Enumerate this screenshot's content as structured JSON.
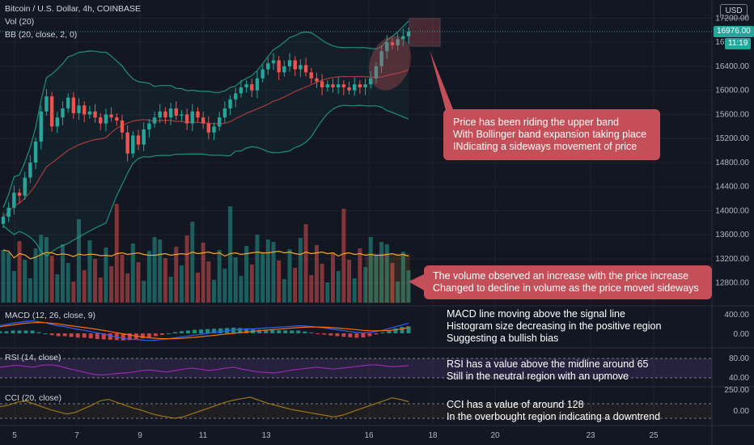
{
  "header": {
    "title": "Bitcoin / U.S. Dollar, 4h, COINBASE",
    "vol_label": "Vol (20)",
    "bb_label": "BB (20, close, 2, 0)",
    "currency": "USD",
    "last_price": "16976.00",
    "countdown": "11:19"
  },
  "panes": {
    "macd_label": "MACD (12, 26, close, 9)",
    "rsi_label": "RSI (14, close)",
    "cci_label": "CCI (20, close)"
  },
  "annotations": {
    "price_note": [
      "Price has been riding the upper band",
      "With Bollinger band expansion taking place",
      "INdicating a sideways movement of price"
    ],
    "volume_note": [
      "The volume observed an increase with the price increase",
      "Changed to decline in volume as the price moved sideways"
    ],
    "macd_note": [
      "MACD line moving above the signal line",
      "Histogram size decreasing in the positive region",
      "Suggesting a bullish bias"
    ],
    "rsi_note": [
      "RSI has a value above the midline around 65",
      "Still in the neutral region with an upmove"
    ],
    "cci_note": [
      "CCI has a value of around 128",
      "In the overbought region indicating a downtrend"
    ]
  },
  "colors": {
    "background": "#131722",
    "up": "#26a69a",
    "down": "#ef5350",
    "bb_band": "#1f8f7a",
    "bb_basis": "#a83a3a",
    "volume_ma": "#f5a623",
    "macd_line": "#2962ff",
    "signal_line": "#ff6d00",
    "rsi_line": "#9c27b0",
    "cci_line": "#9a7416",
    "annotation": "#c44f58",
    "volume_box": "#f5a623"
  },
  "chart_data": {
    "type": "candlestick",
    "symbol": "Bitcoin / U.S. Dollar",
    "interval": "4h",
    "exchange": "COINBASE",
    "x_tick_labels": [
      "5",
      "7",
      "9",
      "11",
      "13",
      "16",
      "18",
      "20",
      "23",
      "25"
    ],
    "price_axis": {
      "ticks": [
        12800,
        13200,
        13600,
        14000,
        14400,
        14800,
        15200,
        15600,
        16000,
        16400,
        16800,
        17200
      ],
      "range": [
        12500,
        17300
      ]
    },
    "close_prices": [
      13900,
      14050,
      14300,
      14250,
      14550,
      14800,
      15150,
      15650,
      15900,
      15400,
      15550,
      15700,
      15880,
      15620,
      15750,
      15600,
      15650,
      15550,
      15450,
      15600,
      15550,
      15500,
      15300,
      14950,
      15250,
      15100,
      15350,
      15450,
      15550,
      15650,
      15550,
      15700,
      15580,
      15600,
      15450,
      15650,
      15550,
      15450,
      15300,
      15400,
      15550,
      15700,
      15850,
      15950,
      16050,
      16100,
      16000,
      16200,
      16350,
      16450,
      16500,
      16300,
      16400,
      16500,
      16350,
      16420,
      16300,
      16200,
      16150,
      16050,
      16100,
      16050,
      16100,
      16050,
      16000,
      16100,
      16050,
      16100,
      16200,
      16400,
      16650,
      16800,
      16750,
      16850,
      16900,
      16976
    ],
    "volume_ticks": [
      "12800.00",
      "13200.00",
      "13600.00"
    ],
    "macd_axis": [
      "400.00",
      "0.00"
    ],
    "rsi_axis": [
      "80.00",
      "40.00"
    ],
    "cci_axis": [
      "250.00",
      "0.00"
    ],
    "macd": {
      "macd_line": [
        180,
        200,
        230,
        250,
        270,
        280,
        260,
        240,
        200,
        170,
        150,
        120,
        90,
        70,
        40,
        10,
        -20,
        -50,
        -80,
        -110,
        -130,
        -140,
        -150,
        -160,
        -150,
        -140,
        -120,
        -100,
        -80,
        -60,
        -40,
        -20,
        0,
        20,
        40,
        60,
        80,
        90,
        100,
        100,
        110,
        120,
        130,
        140,
        150,
        160,
        170,
        165,
        155,
        140,
        120,
        100,
        80,
        60,
        40,
        20,
        10,
        20,
        40,
        70,
        110,
        150,
        190,
        230
      ],
      "signal_line": [
        150,
        170,
        190,
        210,
        230,
        240,
        245,
        240,
        225,
        210,
        190,
        170,
        150,
        130,
        110,
        90,
        65,
        40,
        15,
        -10,
        -35,
        -60,
        -80,
        -100,
        -110,
        -118,
        -120,
        -118,
        -110,
        -100,
        -90,
        -75,
        -60,
        -45,
        -30,
        -15,
        0,
        15,
        30,
        45,
        60,
        72,
        84,
        96,
        108,
        120,
        130,
        138,
        142,
        142,
        138,
        130,
        120,
        108,
        96,
        82,
        68,
        60,
        56,
        58,
        66,
        80,
        100,
        130
      ]
    },
    "rsi": {
      "upper": 80,
      "lower": 40,
      "values": [
        62,
        64,
        66,
        64,
        62,
        66,
        67,
        65,
        60,
        56,
        52,
        48,
        46,
        47,
        49,
        50,
        52,
        55,
        56,
        54,
        52,
        55,
        58,
        60,
        58,
        55,
        57,
        60,
        62,
        58,
        55,
        52,
        51,
        50,
        53,
        56,
        58,
        60,
        62,
        60,
        58,
        60,
        62,
        64,
        66,
        67,
        65,
        63,
        64,
        65
      ]
    },
    "cci": {
      "values": [
        60,
        80,
        120,
        140,
        100,
        60,
        20,
        -10,
        -40,
        -20,
        30,
        80,
        140,
        160,
        120,
        80,
        40,
        10,
        -30,
        -60,
        -80,
        -100,
        -80,
        -40,
        0,
        40,
        80,
        120,
        150,
        170,
        190,
        150,
        110,
        80,
        50,
        20,
        0,
        -20,
        -40,
        -60,
        -80,
        -60,
        -20,
        20,
        60,
        100,
        140,
        180,
        160,
        128
      ]
    }
  }
}
